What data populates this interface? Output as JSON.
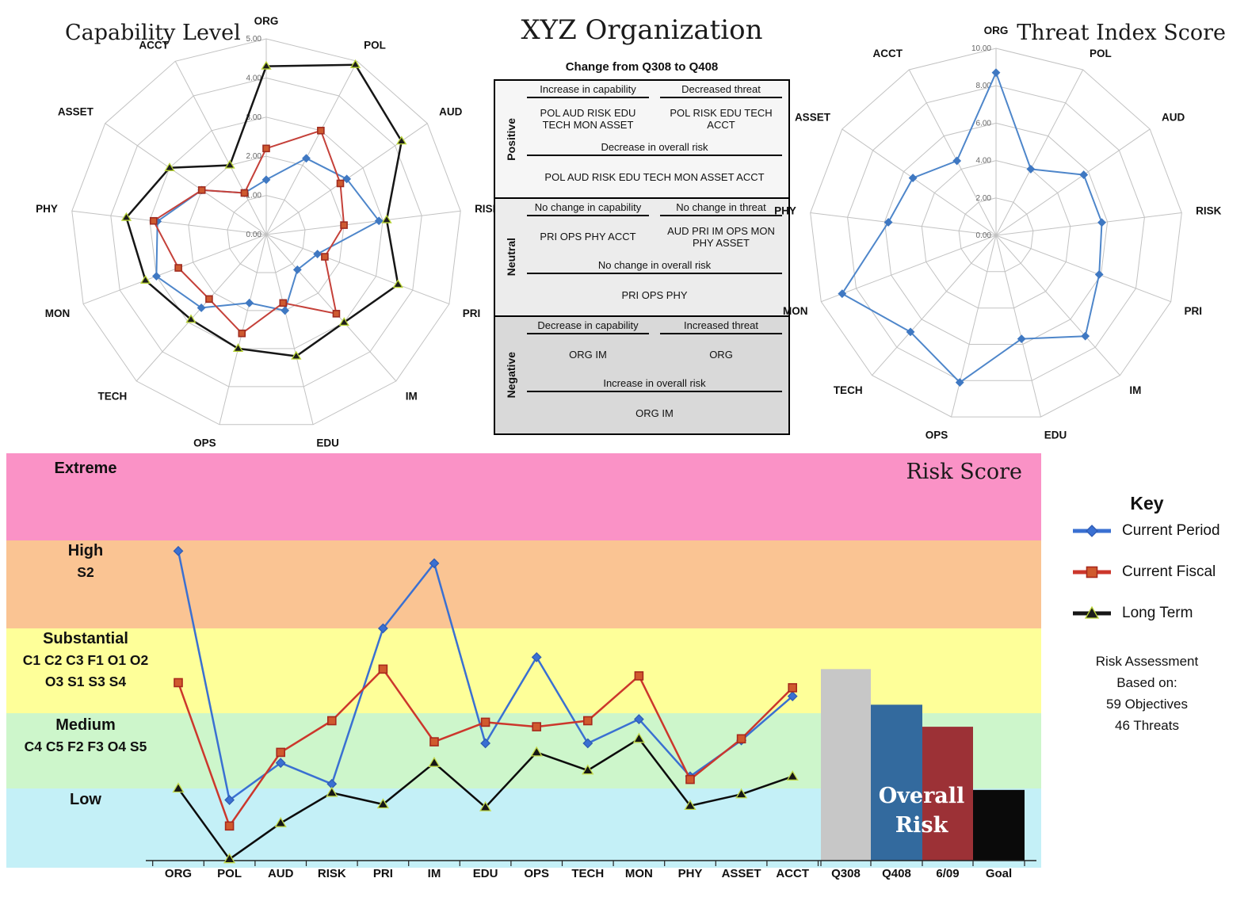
{
  "titles": {
    "capability": "Capability Level",
    "organization": "XYZ Organization",
    "threat": "Threat Index Score",
    "risk_score": "Risk Score",
    "overall_risk": "Overall Risk"
  },
  "change_table": {
    "subtitle": "Change from Q308 to Q408",
    "sections": [
      {
        "name": "Positive",
        "col1_header": "Increase in capability",
        "col2_header": "Decreased threat",
        "col1_value": "POL AUD RISK EDU TECH MON ASSET",
        "col2_value": "POL RISK EDU TECH ACCT",
        "full_header": "Decrease in overall risk",
        "full_value": "POL AUD RISK EDU TECH MON ASSET ACCT"
      },
      {
        "name": "Neutral",
        "col1_header": "No change in capability",
        "col2_header": "No change in threat",
        "col1_value": "PRI OPS PHY ACCT",
        "col2_value": "AUD PRI IM OPS MON PHY ASSET",
        "full_header": "No change in overall risk",
        "full_value": "PRI OPS PHY"
      },
      {
        "name": "Negative",
        "col1_header": "Decrease in capability",
        "col2_header": "Increased threat",
        "col1_value": "ORG IM",
        "col2_value": "ORG",
        "full_header": "Increase in overall risk",
        "full_value": "ORG IM"
      }
    ]
  },
  "legend": {
    "title": "Key",
    "items": [
      {
        "label": "Current Period",
        "color": "#3a70d2",
        "marker": "diamond",
        "marker_fill": "#3a70d2",
        "marker_stroke": "#2f5cb4"
      },
      {
        "label": "Current Fiscal",
        "color": "#cc372c",
        "marker": "square",
        "marker_fill": "#d05a2e",
        "marker_stroke": "#a8291d"
      },
      {
        "label": "Long Term",
        "color": "#161616",
        "marker": "triangle",
        "marker_fill": "#1c1c1c",
        "marker_stroke": "#b9d435"
      }
    ],
    "note_lines": [
      "Risk Assessment",
      "Based on:",
      "59 Objectives",
      "46 Threats"
    ]
  },
  "chart_data": [
    {
      "id": "capability_radar",
      "type": "radar",
      "title": "Capability Level",
      "max": 5,
      "ring_labels": [
        "0.00",
        "1.00",
        "2.00",
        "3.00",
        "4.00",
        "5.00"
      ],
      "categories": [
        "ORG",
        "POL",
        "AUD",
        "RISK",
        "PRI",
        "IM",
        "EDU",
        "OPS",
        "TECH",
        "MON",
        "PHY",
        "ASSET",
        "ACCT"
      ],
      "series": [
        {
          "name": "Current Period",
          "color": "#4e86ca",
          "marker": "diamond",
          "marker_fill": "#3f78c2",
          "marker_stroke": "#3f78c2",
          "width": 2,
          "values": [
            1.4,
            2.2,
            2.5,
            2.9,
            1.4,
            1.2,
            2.0,
            1.8,
            2.5,
            3.0,
            2.8,
            2.0,
            1.2
          ]
        },
        {
          "name": "Current Fiscal",
          "color": "#c5413a",
          "marker": "square",
          "marker_fill": "#ce5a30",
          "marker_stroke": "#a02b1f",
          "width": 2,
          "values": [
            2.2,
            3.0,
            2.3,
            2.0,
            1.6,
            2.7,
            1.8,
            2.6,
            2.2,
            2.4,
            2.9,
            2.0,
            1.2
          ]
        },
        {
          "name": "Long Term",
          "color": "#161616",
          "marker": "triangle",
          "marker_fill": "#1c1c1c",
          "marker_stroke": "#b9d435",
          "width": 2.5,
          "values": [
            4.3,
            4.9,
            4.2,
            3.1,
            3.6,
            3.0,
            3.2,
            3.0,
            2.9,
            3.3,
            3.6,
            3.0,
            2.0
          ]
        }
      ]
    },
    {
      "id": "threat_radar",
      "type": "radar",
      "title": "Threat Index Score",
      "max": 10,
      "ring_labels": [
        "0.00",
        "2.00",
        "4.00",
        "6.00",
        "8.00",
        "10.00"
      ],
      "categories": [
        "ORG",
        "POL",
        "AUD",
        "RISK",
        "PRI",
        "IM",
        "EDU",
        "OPS",
        "TECH",
        "MON",
        "PHY",
        "ASSET",
        "ACCT"
      ],
      "series": [
        {
          "name": "Current Period",
          "color": "#4e86ca",
          "marker": "diamond",
          "marker_fill": "#3f78c2",
          "marker_stroke": "#3f78c2",
          "width": 2,
          "values": [
            8.7,
            4.0,
            5.7,
            5.7,
            5.9,
            7.2,
            5.7,
            8.1,
            6.9,
            8.8,
            5.8,
            5.4,
            4.5
          ]
        }
      ]
    },
    {
      "id": "risk_score",
      "type": "line+bar",
      "title": "Risk Score",
      "ylim": [
        0,
        25
      ],
      "bands": [
        {
          "label": "Extreme",
          "sub": [],
          "color": "#fa92c6",
          "range": [
            20,
            25
          ]
        },
        {
          "label": "High",
          "sub": [
            "S2"
          ],
          "color": "#fac493",
          "range": [
            15,
            20
          ]
        },
        {
          "label": "Substantial",
          "sub": [
            "C1 C2 C3 F1 O1 O2",
            "O3 S1 S3 S4"
          ],
          "color": "#feff99",
          "range": [
            10,
            15
          ]
        },
        {
          "label": "Medium",
          "sub": [
            "C4 C5 F2 F3 O4 S5"
          ],
          "color": "#cdf6cb",
          "range": [
            5,
            10
          ]
        },
        {
          "label": "Low",
          "sub": [],
          "color": "#c4f0f7",
          "range": [
            0,
            5
          ]
        }
      ],
      "categories": [
        "ORG",
        "POL",
        "AUD",
        "RISK",
        "PRI",
        "IM",
        "EDU",
        "OPS",
        "TECH",
        "MON",
        "PHY",
        "ASSET",
        "ACCT"
      ],
      "series": [
        {
          "name": "Current Period",
          "color": "#3a70d2",
          "marker": "diamond",
          "marker_fill": "#3a70d2",
          "marker_stroke": "#2f5cb4",
          "width": 2.5,
          "values": [
            19.4,
            4.2,
            6.7,
            5.3,
            15.0,
            18.7,
            8.0,
            13.3,
            8.0,
            9.6,
            5.8,
            8.2,
            11.0
          ]
        },
        {
          "name": "Current Fiscal",
          "color": "#cc372c",
          "marker": "square",
          "marker_fill": "#d05a2e",
          "marker_stroke": "#a8291d",
          "width": 2.5,
          "values": [
            11.8,
            2.4,
            7.4,
            9.5,
            12.6,
            8.1,
            9.4,
            9.1,
            9.5,
            12.2,
            5.6,
            8.3,
            11.5
          ]
        },
        {
          "name": "Long Term",
          "color": "#0c0c0c",
          "marker": "triangle",
          "marker_fill": "#161616",
          "marker_stroke": "#c2d94a",
          "width": 2.5,
          "values": [
            5.0,
            0.1,
            2.6,
            4.7,
            3.9,
            6.7,
            3.7,
            7.4,
            6.2,
            8.3,
            3.8,
            4.6,
            5.8
          ]
        }
      ],
      "bars": [
        {
          "label": "Q308",
          "value": 12.6,
          "color": "#c7c7c7"
        },
        {
          "label": "Q408",
          "value": 10.5,
          "color": "#336a9e"
        },
        {
          "label": "6/09",
          "value": 9.1,
          "color": "#9c3136"
        },
        {
          "label": "Goal",
          "value": 4.9,
          "color": "#0a0a0a"
        }
      ]
    }
  ]
}
